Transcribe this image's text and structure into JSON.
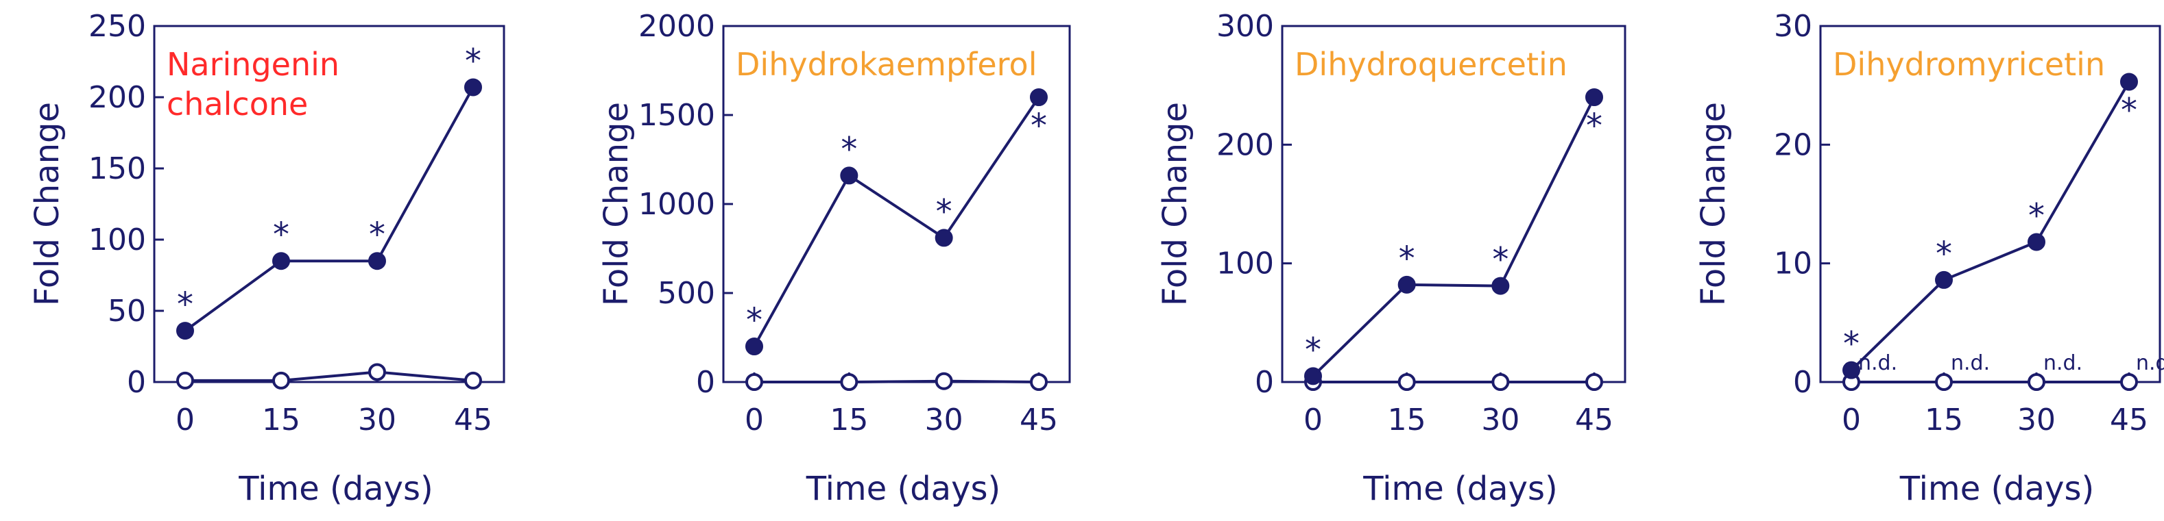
{
  "chart_data": [
    {
      "type": "line",
      "title_lines": [
        "Naringenin",
        "chalcone"
      ],
      "title_color": "#ff2a2a",
      "xlabel": "Time (days)",
      "ylabel": "Fold Change",
      "x": [
        0,
        15,
        30,
        45
      ],
      "xticks": [
        "0",
        "15",
        "30",
        "45"
      ],
      "ylim": [
        0,
        250
      ],
      "yticks": [
        0,
        50,
        100,
        150,
        200,
        250
      ],
      "series": [
        {
          "values": [
            36,
            85,
            85,
            207
          ],
          "marker": "filled",
          "color": "#1c1c6b"
        },
        {
          "values": [
            1,
            1,
            7,
            1
          ],
          "marker": "open",
          "color": "#1c1c6b"
        }
      ],
      "annotations": [
        {
          "x": 0,
          "y": 36,
          "text": "*",
          "position": "above"
        },
        {
          "x": 15,
          "y": 85,
          "text": "*",
          "position": "above"
        },
        {
          "x": 30,
          "y": 85,
          "text": "*",
          "position": "above"
        },
        {
          "x": 45,
          "y": 207,
          "text": "*",
          "position": "above"
        }
      ],
      "nd_labels": []
    },
    {
      "type": "line",
      "title_lines": [
        "Dihydrokaempferol"
      ],
      "title_color": "#f5a030",
      "xlabel": "Time (days)",
      "ylabel": "Fold Change",
      "x": [
        0,
        15,
        30,
        45
      ],
      "xticks": [
        "0",
        "15",
        "30",
        "45"
      ],
      "ylim": [
        0,
        2000
      ],
      "yticks": [
        0,
        500,
        1000,
        1500,
        2000
      ],
      "series": [
        {
          "values": [
            200,
            1160,
            810,
            1600
          ],
          "marker": "filled",
          "color": "#1c1c6b"
        },
        {
          "values": [
            0,
            0,
            5,
            0
          ],
          "marker": "open",
          "color": "#1c1c6b"
        }
      ],
      "annotations": [
        {
          "x": 0,
          "y": 200,
          "text": "*",
          "position": "above"
        },
        {
          "x": 15,
          "y": 1160,
          "text": "*",
          "position": "above"
        },
        {
          "x": 30,
          "y": 810,
          "text": "*",
          "position": "above"
        },
        {
          "x": 45,
          "y": 1600,
          "text": "*",
          "position": "below"
        }
      ],
      "nd_labels": []
    },
    {
      "type": "line",
      "title_lines": [
        "Dihydroquercetin"
      ],
      "title_color": "#f5a030",
      "xlabel": "Time (days)",
      "ylabel": "Fold Change",
      "x": [
        0,
        15,
        30,
        45
      ],
      "xticks": [
        "0",
        "15",
        "30",
        "45"
      ],
      "ylim": [
        0,
        300
      ],
      "yticks": [
        0,
        100,
        200,
        300
      ],
      "series": [
        {
          "values": [
            5,
            82,
            81,
            240
          ],
          "marker": "filled",
          "color": "#1c1c6b"
        },
        {
          "values": [
            0,
            0,
            0,
            0
          ],
          "marker": "open",
          "color": "#1c1c6b"
        }
      ],
      "annotations": [
        {
          "x": 0,
          "y": 5,
          "text": "*",
          "position": "above"
        },
        {
          "x": 15,
          "y": 82,
          "text": "*",
          "position": "above"
        },
        {
          "x": 30,
          "y": 81,
          "text": "*",
          "position": "above"
        },
        {
          "x": 45,
          "y": 240,
          "text": "*",
          "position": "below"
        }
      ],
      "nd_labels": []
    },
    {
      "type": "line",
      "title_lines": [
        "Dihydromyricetin"
      ],
      "title_color": "#f5a030",
      "xlabel": "Time (days)",
      "ylabel": "Fold Change",
      "x": [
        0,
        15,
        30,
        45
      ],
      "xticks": [
        "0",
        "15",
        "30",
        "45"
      ],
      "ylim": [
        0,
        30
      ],
      "yticks": [
        0,
        10,
        20,
        30
      ],
      "series": [
        {
          "values": [
            1,
            8.6,
            11.8,
            25.3
          ],
          "marker": "filled",
          "color": "#1c1c6b"
        },
        {
          "values": [
            0,
            0,
            0,
            0
          ],
          "marker": "open",
          "color": "#1c1c6b"
        }
      ],
      "annotations": [
        {
          "x": 0,
          "y": 1,
          "text": "*",
          "position": "above"
        },
        {
          "x": 15,
          "y": 8.6,
          "text": "*",
          "position": "above"
        },
        {
          "x": 30,
          "y": 11.8,
          "text": "*",
          "position": "above"
        },
        {
          "x": 45,
          "y": 25.3,
          "text": "*",
          "position": "below"
        }
      ],
      "nd_labels": [
        {
          "x": 0,
          "text": "n.d."
        },
        {
          "x": 15,
          "text": "n.d."
        },
        {
          "x": 30,
          "text": "n.d."
        },
        {
          "x": 45,
          "text": "n.d."
        }
      ]
    }
  ]
}
